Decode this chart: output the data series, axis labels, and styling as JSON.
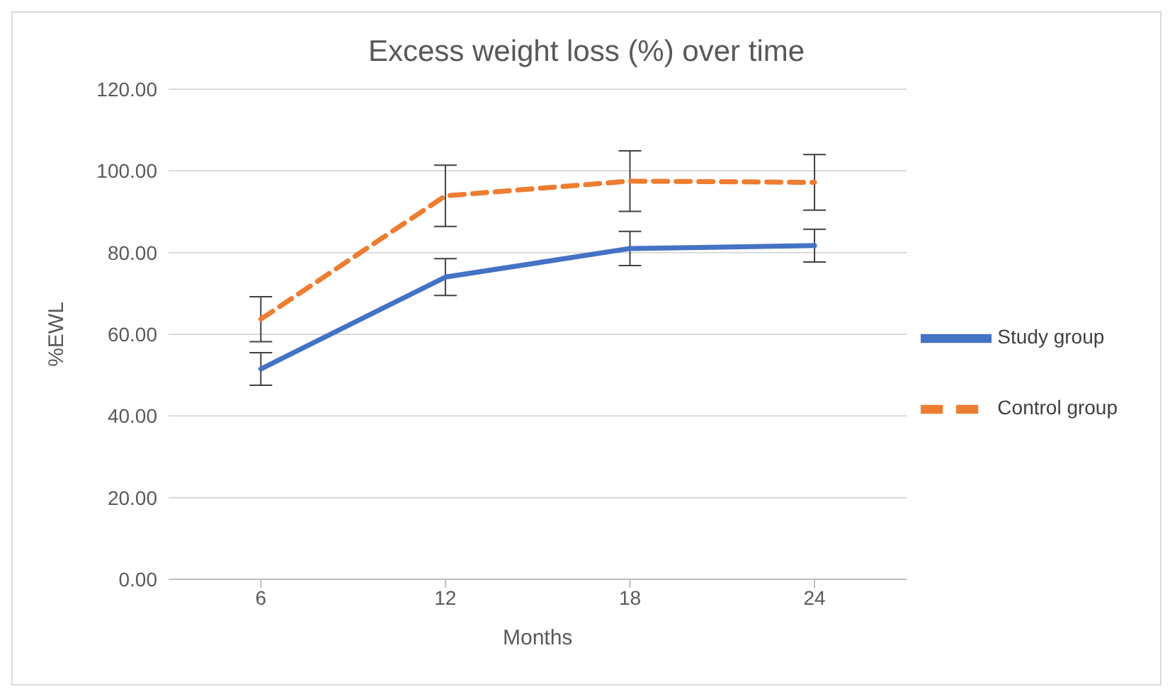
{
  "chart_data": {
    "type": "line",
    "title": "Excess weight loss (%) over time",
    "xlabel": "Months",
    "ylabel": "%EWL",
    "categories": [
      "6",
      "12",
      "18",
      "24"
    ],
    "series": [
      {
        "name": "Study group",
        "color": "#4472c4",
        "values": [
          51.5,
          74,
          81,
          81.7
        ],
        "errors": [
          4,
          4.5,
          4.2,
          4
        ],
        "line_style": "solid"
      },
      {
        "name": "Control group",
        "color": "#ed7d31",
        "values": [
          63.7,
          93.9,
          97.5,
          97.2
        ],
        "errors": [
          5.5,
          7.5,
          7.4,
          6.8
        ],
        "line_style": "dashed"
      }
    ],
    "ylim": [
      0,
      120
    ],
    "yticks": [
      {
        "value": 0,
        "label": "0.00"
      },
      {
        "value": 20,
        "label": "20.00"
      },
      {
        "value": 40,
        "label": "40.00"
      },
      {
        "value": 60,
        "label": "60.00"
      },
      {
        "value": 80,
        "label": "80.00"
      },
      {
        "value": 100,
        "label": "100.00"
      },
      {
        "value": 120,
        "label": "120.00"
      }
    ],
    "grid": "y",
    "legend": "right",
    "marker": "none"
  }
}
